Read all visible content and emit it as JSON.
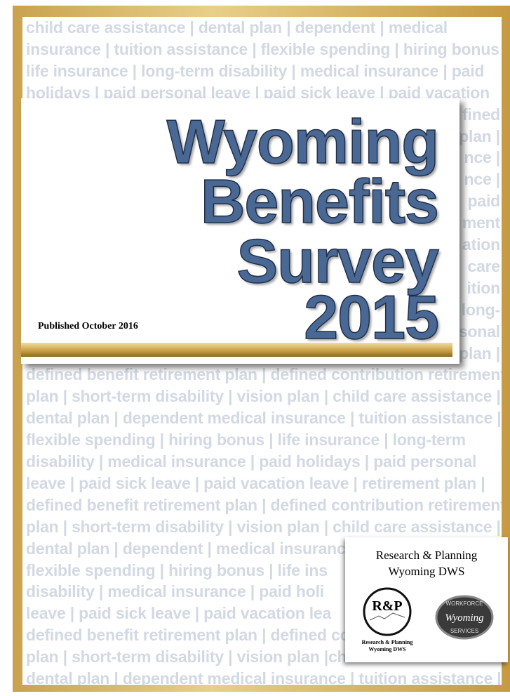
{
  "background_lines": [
    "child care assistance | dental plan | dependent | medical",
    "insurance | tuition assistance | flexible spending | hiring bonus |",
    "life insurance | long-term disability | medical insurance | paid",
    "holidays | paid personal leave | paid sick leave | paid vacation",
    "fined",
    "plan |",
    "nce |",
    "nce |",
    "paid",
    "ment",
    "ation",
    "care",
    "ition",
    "long-",
    "sonal",
    "plan |",
    "defined benefit retirement plan | defined contribution retirement",
    "plan | short-term disability | vision plan | child care assistance |",
    "dental plan | dependent medical insurance | tuition assistance |",
    "flexible spending | hiring bonus | life insurance | long-term",
    "disability | medical insurance | paid holidays | paid personal",
    "leave | paid sick leave | paid vacation leave | retirement plan |",
    "defined benefit retirement plan | defined contribution retirement",
    "plan | short-term disability | vision plan | child care assistance |",
    "dental plan | dependent | medical insurance",
    "flexible spending | hiring bonus | life ins",
    "disability | medical insurance | paid holi",
    "leave | paid sick leave | paid vacation lea",
    "defined benefit retirement plan | defined co",
    "plan | short-term disability | vision plan |ch",
    "dental plan | dependent medical insurance | tuition assistance |"
  ],
  "title": {
    "lines": [
      "Wyoming",
      "Benefits",
      "Survey",
      "2015"
    ],
    "published": "Published October 2016"
  },
  "publisher": {
    "name": "Research & Planning",
    "org": "Wyoming DWS",
    "rp_logo": {
      "mark": "R&P",
      "line1": "Research & Planning",
      "line2": "Wyoming DWS"
    },
    "dws_logo": {
      "top": "WORKFORCE",
      "middle": "Wyoming",
      "bottom": "SERVICES"
    }
  }
}
